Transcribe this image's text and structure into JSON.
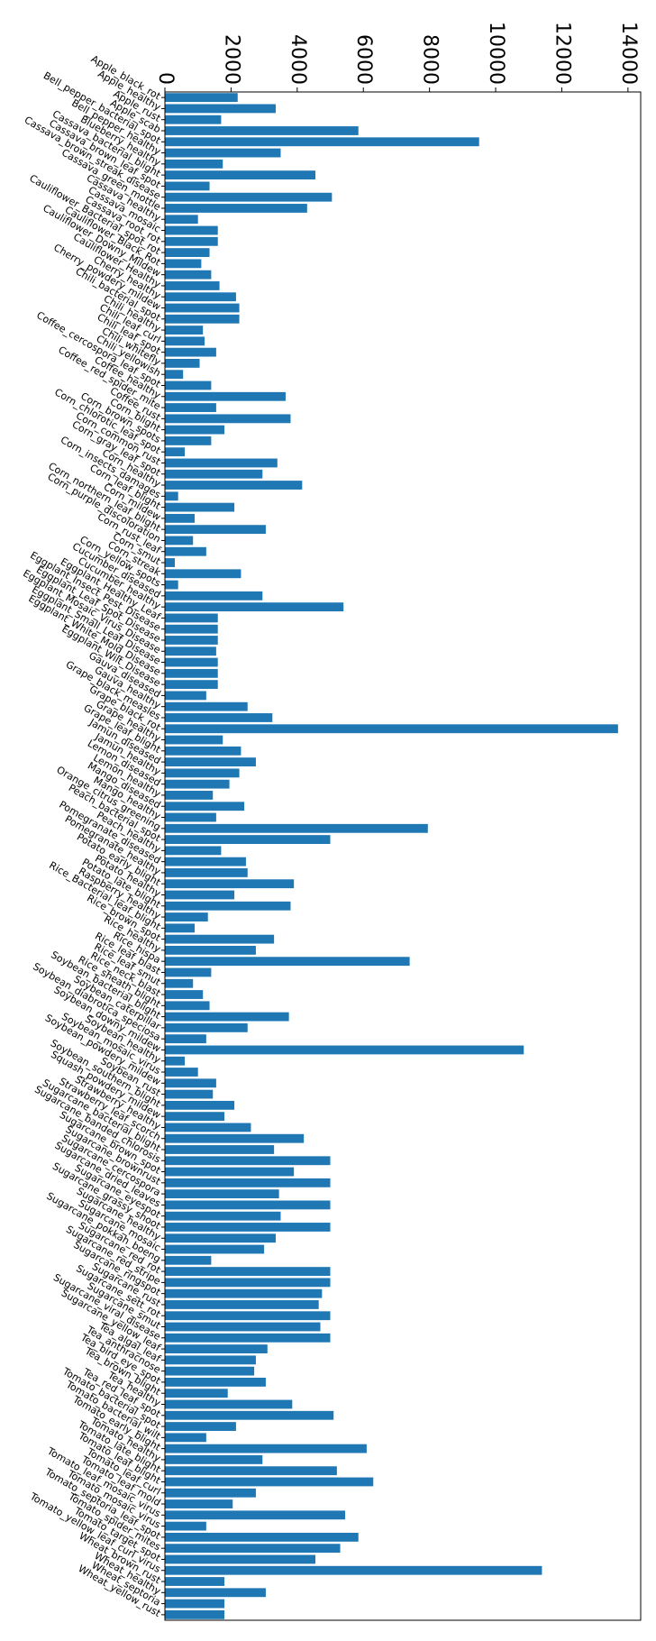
{
  "chart_data": {
    "type": "barh",
    "color": "#1f77b4",
    "categories": [
      "Apple_black_rot",
      "Apple_healthy",
      "Apple_rust",
      "Apple_scab",
      "Bell_pepper_bacterial_spot",
      "Bell_pepper_healthy",
      "Blueberry_healthy",
      "Cassava_bacterial_blight",
      "Cassava_brown_leaf_spot",
      "Cassava_brown_streak_disease",
      "Cassava_green_mottle",
      "Cassava_healthy",
      "Cassava_mosaic",
      "Cassava_root_rot",
      "Cauliflower_Bacterial_spot_rot",
      "Cauliflower_Black_Rot",
      "Cauliflower_Downy_Mildew",
      "Cauliflower_Healthy",
      "Cherry_healthy",
      "Cherry_powdery_mildew",
      "Chili_bacterial_spot",
      "Chili_healthy",
      "Chili_leaf_curl",
      "Chili_leaf_spot",
      "Chili_whitefly",
      "Chili_yellowish",
      "Coffee_cercospora_leaf_spot",
      "Coffee_healthy",
      "Coffee_red_spider_mite",
      "Coffee_rust",
      "Corn_blight",
      "Corn_brown_spots",
      "Corn_chlorotic_leaf_spot",
      "Corn_common_rust",
      "Corn_gray_leaf_spot",
      "Corn_healthy",
      "Corn_insects_damages",
      "Corn_leaf_blight",
      "Corn_mildew",
      "Corn_northern_leaf_blight",
      "Corn_purple_discoloration",
      "Corn_rust_leaf",
      "Corn_smut",
      "Corn_streak",
      "Corn_yellow_spots",
      "Cucumber_diseased",
      "Cucumber_healthy",
      "Eggplant_Healthy_Leaf",
      "Eggplant_Insect_Pest_Disease",
      "Eggplant_Leaf_Spot_Disease",
      "Eggplant_Mosaic_Virus_Disease",
      "Eggplant_Small_Leaf_Disease",
      "Eggplant_White_Mold_Disease",
      "Eggplant_Wilt_Disease",
      "Gauva_diseased",
      "Gauva_healthy",
      "Grape_black_measles",
      "Grape_black_rot",
      "Grape_healthy",
      "Grape_leaf_blight",
      "Jamun_diseased",
      "Jamun_healthy",
      "Lemon_diseased",
      "Lemon_healthy",
      "Mango_diseased",
      "Mango_healthy",
      "Orange_citrus_greening",
      "Peach_bacterial_spot",
      "Peach_healthy",
      "Pomegranate_diseased",
      "Pomegranate_healthy",
      "Potato_early_blight",
      "Potato_healthy",
      "Potato_late_blight",
      "Raspberry_healthy",
      "Rice_Bacterial_leaf_blight",
      "Rice_brown_spot",
      "Rice_healthy",
      "Rice_hispa",
      "Rice_leaf_blast",
      "Rice_leaf_smut",
      "Rice_neck_blast",
      "Rice_sheath_blight",
      "Soybean_bacterial_blight",
      "Soybean_caterpillar",
      "Soybean_diabrotica_speciosa",
      "Soybean_downy_mildew",
      "Soybean_healthy",
      "Soybean_mosaic_virus",
      "Soybean_powdery_mildew",
      "Soybean_rust",
      "Soybean_southern_blight",
      "Squash_powdery_mildew",
      "Strawberry_healthy",
      "Strawberry_leaf_scorch",
      "Sugarcane_bacterial_blight",
      "Sugarcane_banded_chlorosis",
      "Sugarcane_brown_spot",
      "Sugarcane_brownrust",
      "Sugarcane_cercospora",
      "Sugarcane_dried_leaves",
      "Sugarcane_eyespot",
      "Sugarcane_grassy_shoot",
      "Sugarcane_healthy",
      "Sugarcane_mosaic",
      "Sugarcane_pokkah_boeng",
      "Sugarcane_red_rot",
      "Sugarcane_red_stripe",
      "Sugarcane_ringspot",
      "Sugarcane_rust",
      "Sugarcane_sett_rot",
      "Sugarcane_smut",
      "Sugarcane_viral_disease",
      "Sugarcane_yellow_leaf",
      "Tea_algal_leaf",
      "Tea_anthracnose",
      "Tea_bird_eye_spot",
      "Tea_brown_blight",
      "Tea_healthy",
      "Tea_red_leaf_spot",
      "Tomato_bacterial_spot",
      "Tomato_bacterial_wilt",
      "Tomato_early_blight",
      "Tomato_healthy",
      "Tomato_late_blight",
      "Tomato_leaf_blight",
      "Tomato_leaf_curl",
      "Tomato_leaf_mold",
      "Tomato_leaf_mosaic_virus",
      "Tomato_mosaic_virus",
      "Tomato_septoria_leaf_spot",
      "Tomato_spider_mites",
      "Tomato_target_spot",
      "Tomato_yellow_leaf_curl_virus",
      "Wheat_brown_rust",
      "Wheat_healthy",
      "Wheat_septoria",
      "Wheat_yellow_rust"
    ],
    "values": [
      2200,
      3350,
      1700,
      5850,
      9500,
      3500,
      1750,
      4550,
      1350,
      5050,
      4300,
      1000,
      1600,
      1600,
      1350,
      1100,
      1400,
      1650,
      2150,
      2250,
      2250,
      1150,
      1200,
      1550,
      1050,
      550,
      1400,
      3650,
      1550,
      3800,
      1800,
      1400,
      600,
      3400,
      2950,
      4150,
      400,
      2100,
      900,
      3050,
      850,
      1250,
      300,
      2300,
      400,
      2950,
      5400,
      1600,
      1600,
      1600,
      1550,
      1600,
      1600,
      1600,
      1250,
      2500,
      3250,
      13700,
      1750,
      2300,
      2750,
      2250,
      1950,
      1450,
      2400,
      1550,
      7950,
      5000,
      1700,
      2450,
      2500,
      3900,
      2100,
      3800,
      1300,
      900,
      3300,
      2750,
      7400,
      1400,
      850,
      1150,
      1350,
      3750,
      2500,
      1250,
      10850,
      600,
      1000,
      1550,
      1450,
      2100,
      1800,
      2600,
      4200,
      3300,
      5000,
      3900,
      5000,
      3450,
      5000,
      3500,
      5000,
      3350,
      3000,
      1400,
      5000,
      5000,
      4750,
      4650,
      5000,
      4700,
      5000,
      3100,
      2750,
      2700,
      3050,
      1900,
      3850,
      5100,
      2150,
      1250,
      6100,
      2950,
      5200,
      6300,
      2750,
      2050,
      5450,
      1250,
      5850,
      5300,
      4550,
      11400,
      1800,
      3050,
      1800,
      1800
    ],
    "xlim": [
      0,
      14385
    ],
    "xticks": [
      0,
      2000,
      4000,
      6000,
      8000,
      10000,
      12000,
      14000
    ]
  }
}
